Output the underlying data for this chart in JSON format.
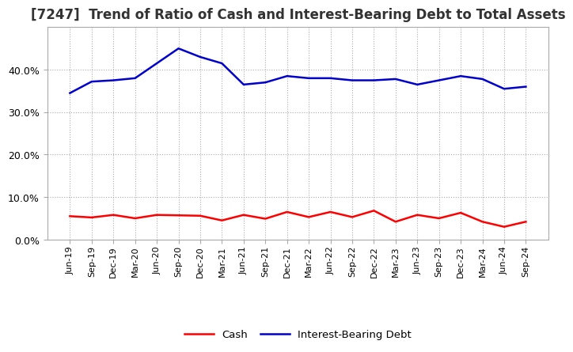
{
  "title": "[7247]  Trend of Ratio of Cash and Interest-Bearing Debt to Total Assets",
  "labels": [
    "Jun-19",
    "Sep-19",
    "Dec-19",
    "Mar-20",
    "Jun-20",
    "Sep-20",
    "Dec-20",
    "Mar-21",
    "Jun-21",
    "Sep-21",
    "Dec-21",
    "Mar-22",
    "Jun-22",
    "Sep-22",
    "Dec-22",
    "Mar-23",
    "Jun-23",
    "Sep-23",
    "Dec-23",
    "Mar-24",
    "Jun-24",
    "Sep-24"
  ],
  "cash": [
    5.5,
    5.2,
    5.8,
    5.0,
    5.8,
    5.7,
    5.6,
    4.5,
    5.8,
    4.9,
    6.5,
    5.3,
    6.5,
    5.3,
    6.8,
    4.2,
    5.8,
    5.0,
    6.3,
    4.2,
    3.0,
    4.2
  ],
  "interest_bearing_debt": [
    34.5,
    37.2,
    37.5,
    38.0,
    41.5,
    45.0,
    43.0,
    41.5,
    36.5,
    37.0,
    38.5,
    38.0,
    38.0,
    37.5,
    37.5,
    37.8,
    36.5,
    37.5,
    38.5,
    37.8,
    35.5,
    36.0
  ],
  "cash_color": "#ff0000",
  "debt_color": "#0000cc",
  "grid_color": "#aaaaaa",
  "bg_color": "#ffffff",
  "plot_bg_color": "#ffffff",
  "ylim": [
    0,
    50
  ],
  "yticks": [
    0,
    10,
    20,
    30,
    40
  ],
  "title_fontsize": 12,
  "title_color": "#333333",
  "legend_labels": [
    "Cash",
    "Interest-Bearing Debt"
  ],
  "tick_label_fontsize": 8,
  "ytick_label_fontsize": 9
}
